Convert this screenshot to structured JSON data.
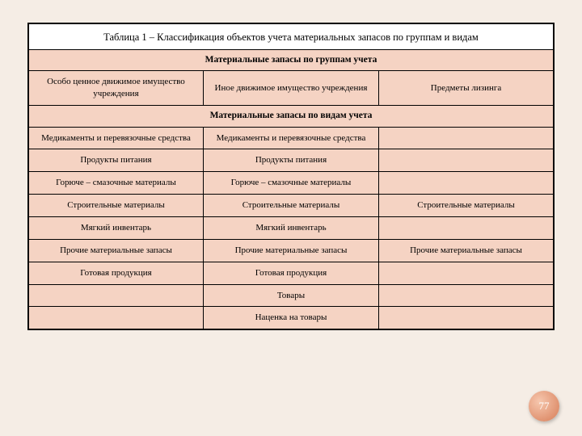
{
  "title": "Таблица 1 – Классификация объектов учета материальных запасов по группам и видам",
  "section1_header": "Материальные запасы по группам учета",
  "groups": {
    "col1": "Особо ценное движимое имущество учреждения",
    "col2": "Иное движимое имущество учреждения",
    "col3": "Предметы лизинга"
  },
  "section2_header": "Материальные запасы по видам учета",
  "rows": [
    {
      "c1": "Медикаменты и перевязочные средства",
      "c2": "Медикаменты и перевязочные средства",
      "c3": ""
    },
    {
      "c1": "Продукты питания",
      "c2": "Продукты питания",
      "c3": ""
    },
    {
      "c1": "Горюче – смазочные материалы",
      "c2": "Горюче – смазочные материалы",
      "c3": ""
    },
    {
      "c1": "Строительные материалы",
      "c2": "Строительные материалы",
      "c3": "Строительные материалы"
    },
    {
      "c1": "Мягкий инвентарь",
      "c2": "Мягкий инвентарь",
      "c3": ""
    },
    {
      "c1": "Прочие материальные запасы",
      "c2": "Прочие материальные запасы",
      "c3": "Прочие материальные запасы"
    },
    {
      "c1": "Готовая продукция",
      "c2": "Готовая продукция",
      "c3": ""
    },
    {
      "c1": "",
      "c2": "Товары",
      "c3": ""
    },
    {
      "c1": "",
      "c2": "Наценка на товары",
      "c3": ""
    }
  ],
  "page_number": "77",
  "colors": {
    "page_bg": "#f5ede5",
    "row_bg": "#f5d3c3",
    "border": "#000000",
    "badge_light": "#f6c7ae",
    "badge_dark": "#dd8b68"
  }
}
